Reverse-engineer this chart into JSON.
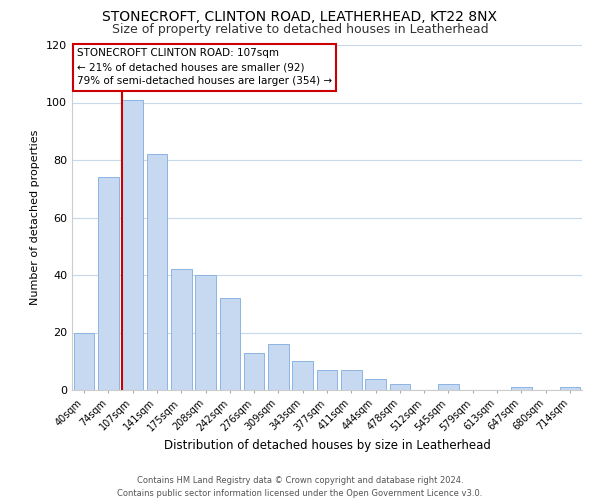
{
  "title_line1": "STONECROFT, CLINTON ROAD, LEATHERHEAD, KT22 8NX",
  "title_line2": "Size of property relative to detached houses in Leatherhead",
  "xlabel": "Distribution of detached houses by size in Leatherhead",
  "ylabel": "Number of detached properties",
  "bar_labels": [
    "40sqm",
    "74sqm",
    "107sqm",
    "141sqm",
    "175sqm",
    "208sqm",
    "242sqm",
    "276sqm",
    "309sqm",
    "343sqm",
    "377sqm",
    "411sqm",
    "444sqm",
    "478sqm",
    "512sqm",
    "545sqm",
    "579sqm",
    "613sqm",
    "647sqm",
    "680sqm",
    "714sqm"
  ],
  "bar_values": [
    20,
    74,
    101,
    82,
    42,
    40,
    32,
    13,
    16,
    10,
    7,
    7,
    4,
    2,
    0,
    2,
    0,
    0,
    1,
    0,
    1
  ],
  "bar_color": "#c6d9f0",
  "bar_edge_color": "#8db4e2",
  "marker_index": 2,
  "marker_line_color": "#cc0000",
  "ylim": [
    0,
    120
  ],
  "yticks": [
    0,
    20,
    40,
    60,
    80,
    100,
    120
  ],
  "annotation_title": "STONECROFT CLINTON ROAD: 107sqm",
  "annotation_line2": "← 21% of detached houses are smaller (92)",
  "annotation_line3": "79% of semi-detached houses are larger (354) →",
  "annotation_box_color": "#ffffff",
  "annotation_box_edge_color": "#cc0000",
  "footer_line1": "Contains HM Land Registry data © Crown copyright and database right 2024.",
  "footer_line2": "Contains public sector information licensed under the Open Government Licence v3.0.",
  "background_color": "#ffffff",
  "grid_color": "#c8d8e8"
}
